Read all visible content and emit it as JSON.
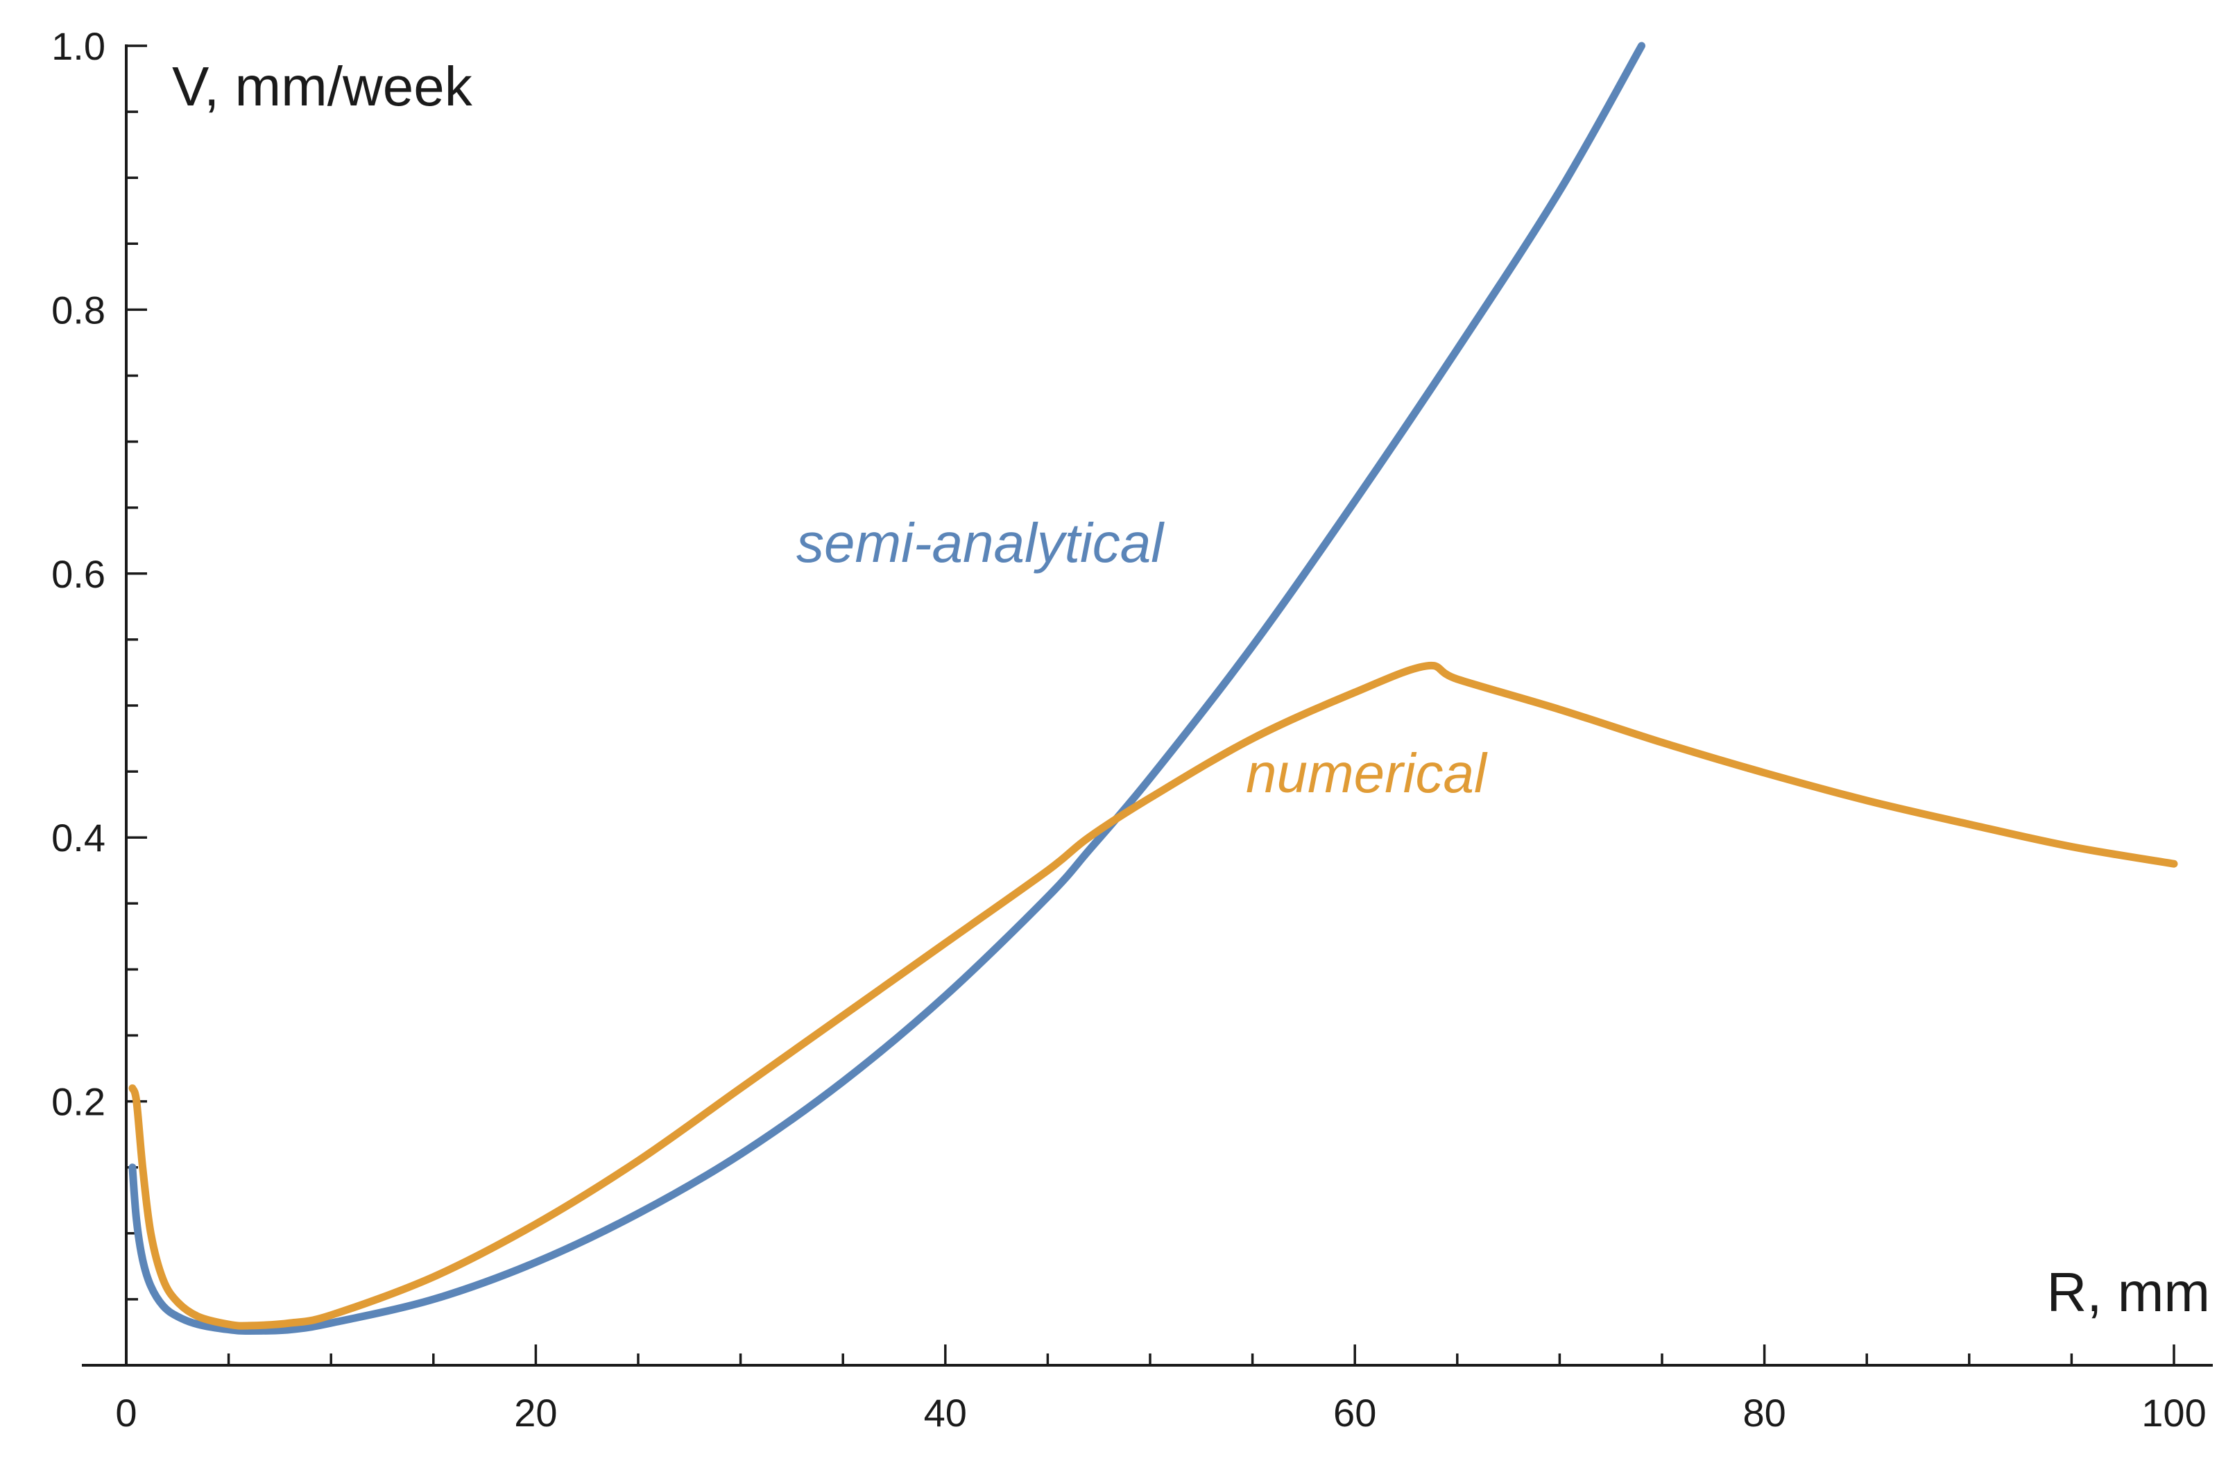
{
  "chart_data": {
    "type": "line",
    "title": "",
    "xlabel": "R, mm",
    "ylabel": "V, mm/week",
    "xlim": [
      0,
      100
    ],
    "ylim": [
      0,
      1.0
    ],
    "x_ticks": [
      0,
      20,
      40,
      60,
      80,
      100
    ],
    "x_tick_labels": [
      "0",
      "20",
      "40",
      "60",
      "80",
      "100"
    ],
    "y_ticks": [
      0.2,
      0.4,
      0.6,
      0.8,
      1.0
    ],
    "y_tick_labels": [
      "0.2",
      "0.4",
      "0.6",
      "0.8",
      "1.0"
    ],
    "grid": false,
    "legend": "none",
    "series": [
      {
        "name": "semi-analytical",
        "color": "#5b85b8",
        "x": [
          0.3,
          0.5,
          0.8,
          1.2,
          1.8,
          2.5,
          3.5,
          5,
          6,
          8,
          10,
          15,
          20,
          25,
          30,
          35,
          40,
          45,
          47,
          50,
          55,
          60,
          65,
          70,
          74
        ],
        "y": [
          0.15,
          0.11,
          0.08,
          0.06,
          0.045,
          0.037,
          0.031,
          0.027,
          0.026,
          0.027,
          0.032,
          0.05,
          0.078,
          0.115,
          0.16,
          0.215,
          0.28,
          0.355,
          0.39,
          0.445,
          0.545,
          0.655,
          0.77,
          0.89,
          1.0
        ]
      },
      {
        "name": "numerical",
        "color": "#e09b35",
        "x": [
          0.3,
          0.5,
          0.8,
          1.2,
          1.8,
          2.5,
          3.5,
          5,
          6,
          8,
          10,
          15,
          20,
          25,
          30,
          35,
          40,
          45,
          47,
          50,
          55,
          60,
          63.5,
          65,
          70,
          75,
          80,
          85,
          90,
          95,
          100
        ],
        "y": [
          0.21,
          0.2,
          0.15,
          0.1,
          0.065,
          0.048,
          0.037,
          0.031,
          0.03,
          0.032,
          0.038,
          0.067,
          0.107,
          0.155,
          0.21,
          0.265,
          0.32,
          0.375,
          0.4,
          0.43,
          0.475,
          0.51,
          0.53,
          0.52,
          0.497,
          0.472,
          0.449,
          0.428,
          0.41,
          0.393,
          0.38
        ]
      }
    ],
    "annotations": [
      {
        "text": "semi-analytical",
        "series": 0
      },
      {
        "text": "numerical",
        "series": 1
      }
    ]
  }
}
